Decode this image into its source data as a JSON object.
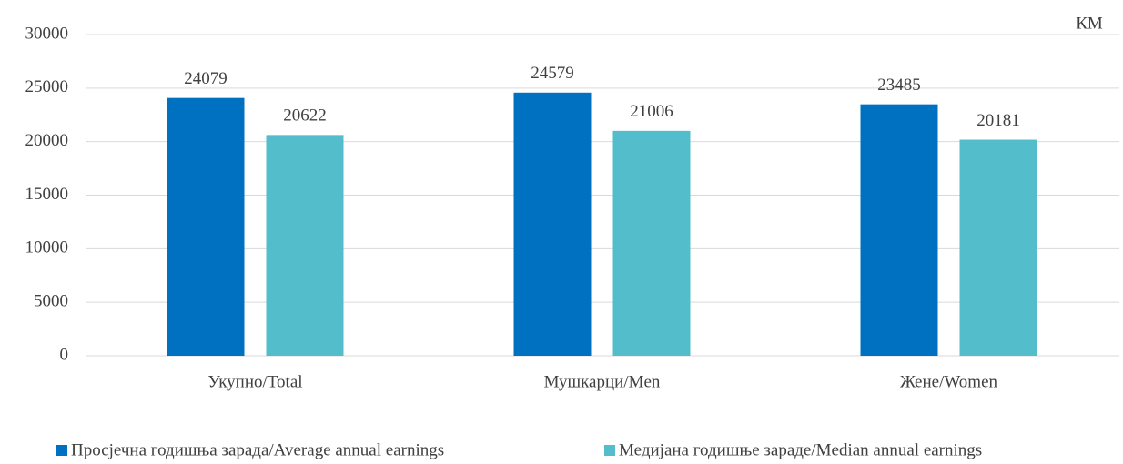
{
  "chart_data": {
    "type": "bar",
    "unit_label": "КМ",
    "categories": [
      "Укупно/Total",
      "Мушкарци/Men",
      "Жене/Women"
    ],
    "series": [
      {
        "name": "Просјечна годишња зарада/Average annual earnings",
        "color": "#0070c0",
        "values": [
          24079,
          24579,
          23485
        ]
      },
      {
        "name": "Медијана годишње зараде/Median annual earnings",
        "color": "#53bdcb",
        "values": [
          20622,
          21006,
          20181
        ]
      }
    ],
    "ylim": [
      0,
      30000
    ],
    "yticks": [
      0,
      5000,
      10000,
      15000,
      20000,
      25000,
      30000
    ],
    "grid": true,
    "legend": "bottom",
    "data_labels": true
  }
}
